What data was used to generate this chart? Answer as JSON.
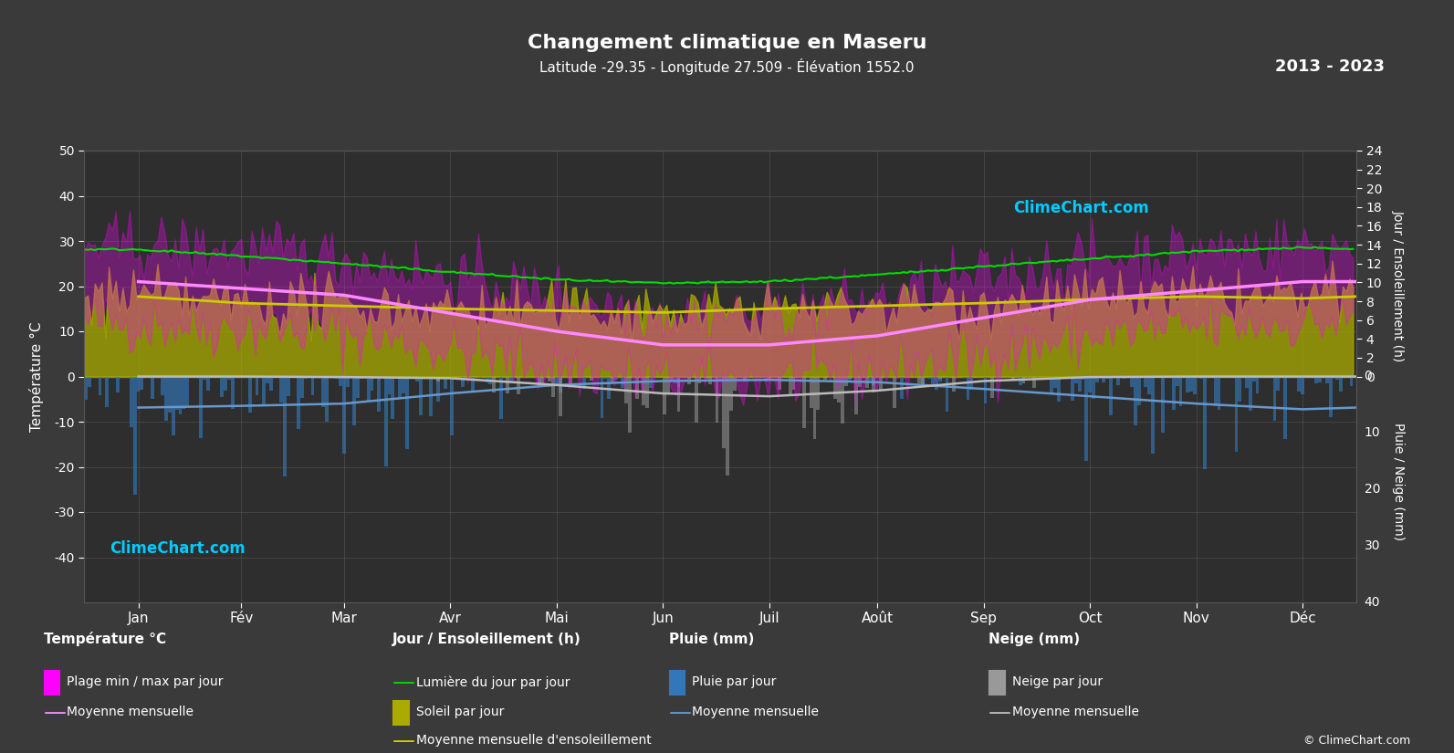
{
  "title": "Changement climatique en Maseru",
  "subtitle": "Latitude -29.35 - Longitude 27.509 - Élévation 1552.0",
  "year_range": "2013 - 2023",
  "background_color": "#3a3a3a",
  "plot_bg_color": "#2e2e2e",
  "grid_color": "#555555",
  "text_color": "#ffffff",
  "months": [
    "Jan",
    "Fév",
    "Mar",
    "Avr",
    "Mai",
    "Jun",
    "Juil",
    "Août",
    "Sep",
    "Oct",
    "Nov",
    "Déc"
  ],
  "temp_ylim": [
    -50,
    50
  ],
  "temp_mean": [
    21.0,
    19.5,
    18.0,
    14.0,
    10.0,
    7.0,
    7.0,
    9.0,
    13.0,
    17.0,
    19.0,
    21.0
  ],
  "temp_min_mean": [
    12.0,
    11.0,
    10.0,
    6.0,
    2.0,
    -1.0,
    -1.0,
    1.0,
    5.0,
    9.0,
    11.0,
    12.0
  ],
  "temp_max_mean": [
    29.0,
    28.0,
    26.0,
    22.0,
    18.0,
    14.0,
    14.0,
    17.0,
    22.0,
    26.0,
    28.0,
    29.0
  ],
  "daylight_hours": [
    13.5,
    12.8,
    12.0,
    11.1,
    10.3,
    9.9,
    10.1,
    10.8,
    11.7,
    12.5,
    13.3,
    13.7
  ],
  "sunshine_hours_mean": [
    8.5,
    7.8,
    7.5,
    7.2,
    7.0,
    6.8,
    7.2,
    7.5,
    7.8,
    8.2,
    8.5,
    8.3
  ],
  "rain_mean_mm": [
    5.5,
    5.2,
    4.8,
    3.0,
    1.5,
    0.8,
    0.6,
    1.0,
    2.2,
    3.5,
    4.8,
    5.8
  ],
  "snow_mean_mm": [
    0.0,
    0.0,
    0.1,
    0.3,
    1.5,
    3.0,
    3.5,
    2.5,
    0.8,
    0.1,
    0.0,
    0.0
  ],
  "rain_scale_max": 40,
  "sun_scale_max": 24,
  "colors": {
    "temp_range_fill": "#ff00ff",
    "temp_mean_line": "#ff88ff",
    "daylight_line": "#00dd00",
    "sunshine_fill": "#aaaa00",
    "sunshine_line": "#cccc00",
    "rain_bar": "#3377bb",
    "snow_bar": "#999999",
    "rain_mean_line": "#6699cc",
    "snow_mean_line": "#bbbbbb"
  }
}
